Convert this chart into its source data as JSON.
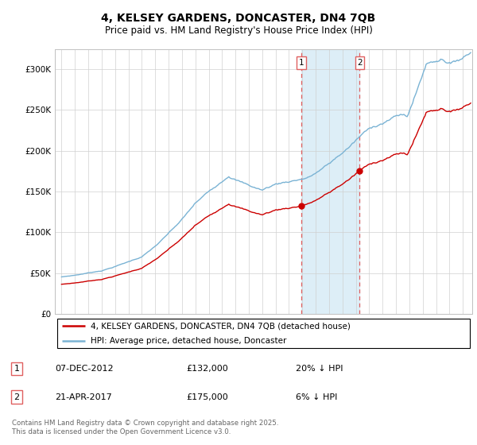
{
  "title": "4, KELSEY GARDENS, DONCASTER, DN4 7QB",
  "subtitle": "Price paid vs. HM Land Registry's House Price Index (HPI)",
  "legend_line1": "4, KELSEY GARDENS, DONCASTER, DN4 7QB (detached house)",
  "legend_line2": "HPI: Average price, detached house, Doncaster",
  "sale1_date": "07-DEC-2012",
  "sale1_price": "£132,000",
  "sale1_hpi": "20% ↓ HPI",
  "sale1_year": 2012.92,
  "sale1_value": 132000,
  "sale2_date": "21-APR-2017",
  "sale2_price": "£175,000",
  "sale2_hpi": "6% ↓ HPI",
  "sale2_year": 2017.29,
  "sale2_value": 175000,
  "footer": "Contains HM Land Registry data © Crown copyright and database right 2025.\nThis data is licensed under the Open Government Licence v3.0.",
  "hpi_color": "#7ab3d4",
  "price_color": "#cc0000",
  "shading_color": "#ddeef7",
  "vline_color": "#e06060",
  "ylim_min": 0,
  "ylim_max": 325000,
  "yticks": [
    0,
    50000,
    100000,
    150000,
    200000,
    250000,
    300000
  ],
  "ytick_labels": [
    "£0",
    "£50K",
    "£100K",
    "£150K",
    "£200K",
    "£250K",
    "£300K"
  ],
  "xmin": 1994.5,
  "xmax": 2025.7
}
